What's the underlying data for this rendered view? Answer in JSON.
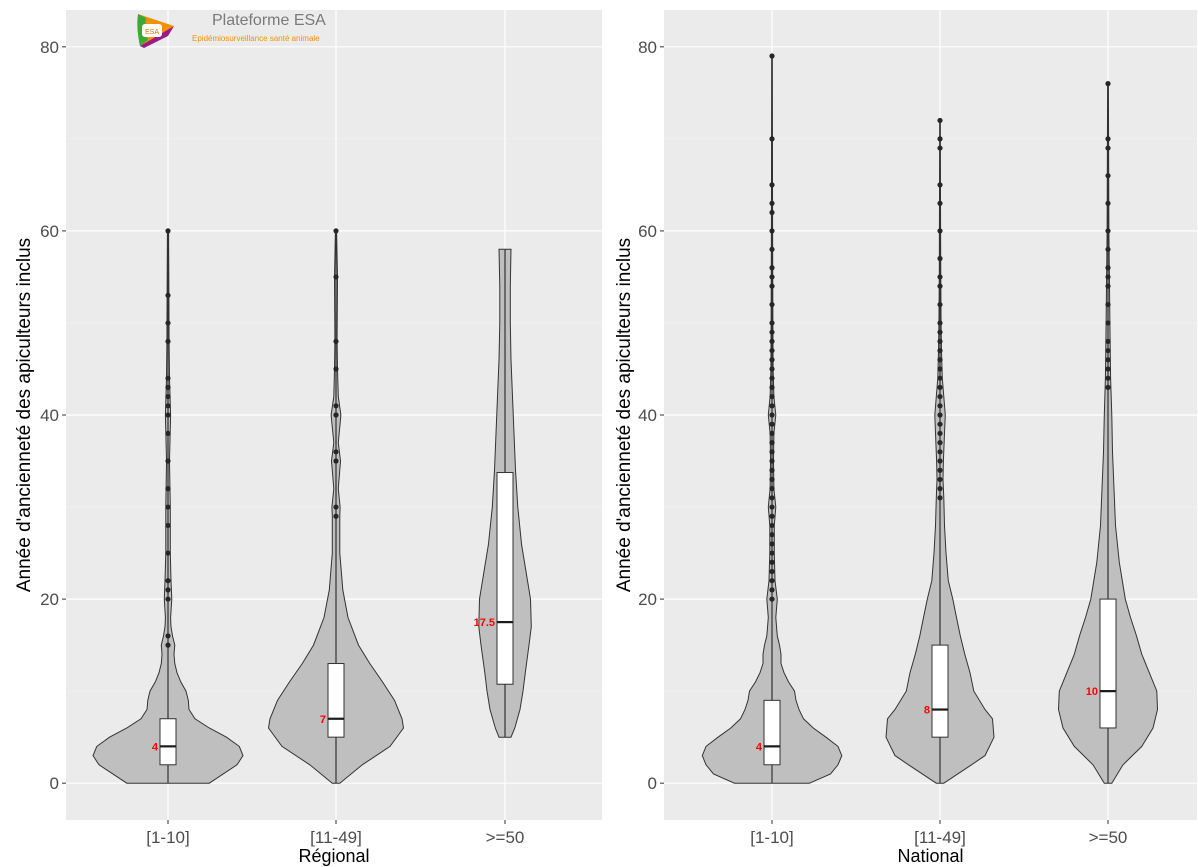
{
  "logo": {
    "title": "Plateforme ESA",
    "subtitle": "Epidémiosurveillance santé animale",
    "badge": "ESA"
  },
  "chart_data": [
    {
      "type": "violin",
      "panel": "Régional",
      "xlabel": "Régional",
      "ylabel": "Année d'ancienneté des apiculteurs inclus",
      "ylim": [
        -4,
        84
      ],
      "yticks": [
        0,
        20,
        40,
        60,
        80
      ],
      "categories": [
        "[1-10]",
        "[11-49]",
        ">=50"
      ],
      "grid": true,
      "series": [
        {
          "category": "[1-10]",
          "median": 4,
          "median_label": "4",
          "q1": 2,
          "q3": 7,
          "min": 0,
          "max": 60,
          "outliers": [
            15,
            16,
            20,
            21,
            22,
            25,
            28,
            30,
            32,
            35,
            38,
            40,
            41,
            42,
            43,
            44,
            48,
            50,
            53,
            60
          ],
          "density": [
            [
              0,
              0.55
            ],
            [
              2,
              0.92
            ],
            [
              3,
              1.0
            ],
            [
              4,
              0.95
            ],
            [
              5,
              0.78
            ],
            [
              6,
              0.55
            ],
            [
              7,
              0.36
            ],
            [
              8,
              0.28
            ],
            [
              9,
              0.27
            ],
            [
              10,
              0.24
            ],
            [
              11,
              0.17
            ],
            [
              12,
              0.12
            ],
            [
              13,
              0.09
            ],
            [
              14,
              0.08
            ],
            [
              15,
              0.09
            ],
            [
              16,
              0.06
            ],
            [
              17,
              0.04
            ],
            [
              18,
              0.035
            ],
            [
              20,
              0.05
            ],
            [
              22,
              0.04
            ],
            [
              25,
              0.03
            ],
            [
              30,
              0.03
            ],
            [
              35,
              0.02
            ],
            [
              40,
              0.035
            ],
            [
              44,
              0.02
            ],
            [
              48,
              0.015
            ],
            [
              53,
              0.012
            ],
            [
              60,
              0.008
            ]
          ]
        },
        {
          "category": "[11-49]",
          "median": 7,
          "median_label": "7",
          "q1": 5,
          "q3": 13,
          "min": 0,
          "max": 60,
          "outliers": [
            29,
            30,
            35,
            36,
            40,
            41,
            45,
            48,
            55,
            60
          ],
          "density": [
            [
              0,
              0.05
            ],
            [
              2,
              0.35
            ],
            [
              4,
              0.72
            ],
            [
              6,
              0.9
            ],
            [
              7,
              0.88
            ],
            [
              9,
              0.78
            ],
            [
              11,
              0.62
            ],
            [
              13,
              0.45
            ],
            [
              15,
              0.3
            ],
            [
              18,
              0.16
            ],
            [
              21,
              0.09
            ],
            [
              25,
              0.05
            ],
            [
              29,
              0.05
            ],
            [
              30,
              0.055
            ],
            [
              32,
              0.03
            ],
            [
              35,
              0.06
            ],
            [
              37,
              0.03
            ],
            [
              40,
              0.065
            ],
            [
              42,
              0.03
            ],
            [
              45,
              0.02
            ],
            [
              48,
              0.015
            ],
            [
              55,
              0.02
            ],
            [
              60,
              0.008
            ]
          ]
        },
        {
          "category": ">=50",
          "median": 17.5,
          "median_label": "17.5",
          "q1": 10.75,
          "q3": 33.75,
          "min": 5,
          "max": 58,
          "outliers": [],
          "density": [
            [
              5,
              0.08
            ],
            [
              6,
              0.13
            ],
            [
              8,
              0.2
            ],
            [
              10,
              0.24
            ],
            [
              12,
              0.27
            ],
            [
              15,
              0.32
            ],
            [
              17,
              0.35
            ],
            [
              20,
              0.34
            ],
            [
              23,
              0.28
            ],
            [
              26,
              0.22
            ],
            [
              30,
              0.17
            ],
            [
              34,
              0.14
            ],
            [
              38,
              0.12
            ],
            [
              42,
              0.1
            ],
            [
              46,
              0.08
            ],
            [
              50,
              0.07
            ],
            [
              54,
              0.07
            ],
            [
              58,
              0.08
            ]
          ]
        }
      ]
    },
    {
      "type": "violin",
      "panel": "National",
      "xlabel": "National",
      "ylabel": "Année d'ancienneté des apiculteurs inclus",
      "ylim": [
        -4,
        84
      ],
      "yticks": [
        0,
        20,
        40,
        60,
        80
      ],
      "categories": [
        "[1-10]",
        "[11-49]",
        ">=50"
      ],
      "grid": true,
      "series": [
        {
          "category": "[1-10]",
          "median": 4,
          "median_label": "4",
          "q1": 2,
          "q3": 9,
          "min": 0,
          "max": 79,
          "outliers": [
            20,
            21,
            22,
            23,
            24,
            25,
            26,
            27,
            28,
            29,
            30,
            31,
            32,
            33,
            34,
            35,
            36,
            37,
            38,
            39,
            40,
            41,
            42,
            43,
            44,
            45,
            46,
            47,
            48,
            49,
            50,
            52,
            54,
            55,
            56,
            58,
            60,
            62,
            63,
            65,
            70,
            79
          ],
          "density": [
            [
              0,
              0.5
            ],
            [
              1,
              0.78
            ],
            [
              2,
              0.88
            ],
            [
              3,
              0.93
            ],
            [
              4,
              0.88
            ],
            [
              5,
              0.72
            ],
            [
              6,
              0.55
            ],
            [
              7,
              0.42
            ],
            [
              8,
              0.36
            ],
            [
              9,
              0.32
            ],
            [
              10,
              0.3
            ],
            [
              11,
              0.22
            ],
            [
              12,
              0.16
            ],
            [
              13,
              0.12
            ],
            [
              14,
              0.12
            ],
            [
              15,
              0.1
            ],
            [
              16,
              0.07
            ],
            [
              18,
              0.05
            ],
            [
              20,
              0.07
            ],
            [
              22,
              0.04
            ],
            [
              25,
              0.03
            ],
            [
              28,
              0.03
            ],
            [
              30,
              0.05
            ],
            [
              32,
              0.025
            ],
            [
              35,
              0.02
            ],
            [
              38,
              0.025
            ],
            [
              40,
              0.05
            ],
            [
              42,
              0.025
            ],
            [
              45,
              0.015
            ],
            [
              50,
              0.012
            ],
            [
              60,
              0.008
            ],
            [
              79,
              0.004
            ]
          ]
        },
        {
          "category": "[11-49]",
          "median": 8,
          "median_label": "8",
          "q1": 5,
          "q3": 15,
          "min": 0,
          "max": 72,
          "outliers": [
            31,
            32,
            33,
            34,
            35,
            36,
            37,
            38,
            39,
            40,
            41,
            42,
            43,
            44,
            45,
            46,
            47,
            48,
            49,
            50,
            52,
            54,
            55,
            57,
            60,
            63,
            65,
            69,
            70,
            72
          ],
          "density": [
            [
              0,
              0.05
            ],
            [
              2,
              0.42
            ],
            [
              3,
              0.6
            ],
            [
              5,
              0.72
            ],
            [
              7,
              0.7
            ],
            [
              8,
              0.6
            ],
            [
              10,
              0.45
            ],
            [
              12,
              0.4
            ],
            [
              14,
              0.33
            ],
            [
              16,
              0.27
            ],
            [
              18,
              0.22
            ],
            [
              20,
              0.17
            ],
            [
              22,
              0.11
            ],
            [
              25,
              0.08
            ],
            [
              28,
              0.06
            ],
            [
              31,
              0.05
            ],
            [
              33,
              0.04
            ],
            [
              35,
              0.045
            ],
            [
              38,
              0.06
            ],
            [
              40,
              0.07
            ],
            [
              42,
              0.05
            ],
            [
              44,
              0.03
            ],
            [
              47,
              0.02
            ],
            [
              50,
              0.015
            ],
            [
              55,
              0.01
            ],
            [
              60,
              0.008
            ],
            [
              72,
              0.004
            ]
          ]
        },
        {
          "category": ">=50",
          "median": 10,
          "median_label": "10",
          "q1": 6,
          "q3": 20,
          "min": 0,
          "max": 76,
          "outliers": [
            43,
            44,
            45,
            46,
            47,
            48,
            50,
            52,
            54,
            55,
            56,
            58,
            60,
            63,
            66,
            69,
            70,
            76
          ],
          "density": [
            [
              0,
              0.05
            ],
            [
              2,
              0.2
            ],
            [
              4,
              0.45
            ],
            [
              6,
              0.6
            ],
            [
              8,
              0.66
            ],
            [
              10,
              0.65
            ],
            [
              12,
              0.55
            ],
            [
              14,
              0.45
            ],
            [
              16,
              0.38
            ],
            [
              18,
              0.3
            ],
            [
              20,
              0.23
            ],
            [
              24,
              0.15
            ],
            [
              28,
              0.1
            ],
            [
              32,
              0.08
            ],
            [
              36,
              0.06
            ],
            [
              40,
              0.05
            ],
            [
              44,
              0.035
            ],
            [
              50,
              0.025
            ],
            [
              60,
              0.012
            ],
            [
              76,
              0.005
            ]
          ]
        }
      ]
    }
  ]
}
